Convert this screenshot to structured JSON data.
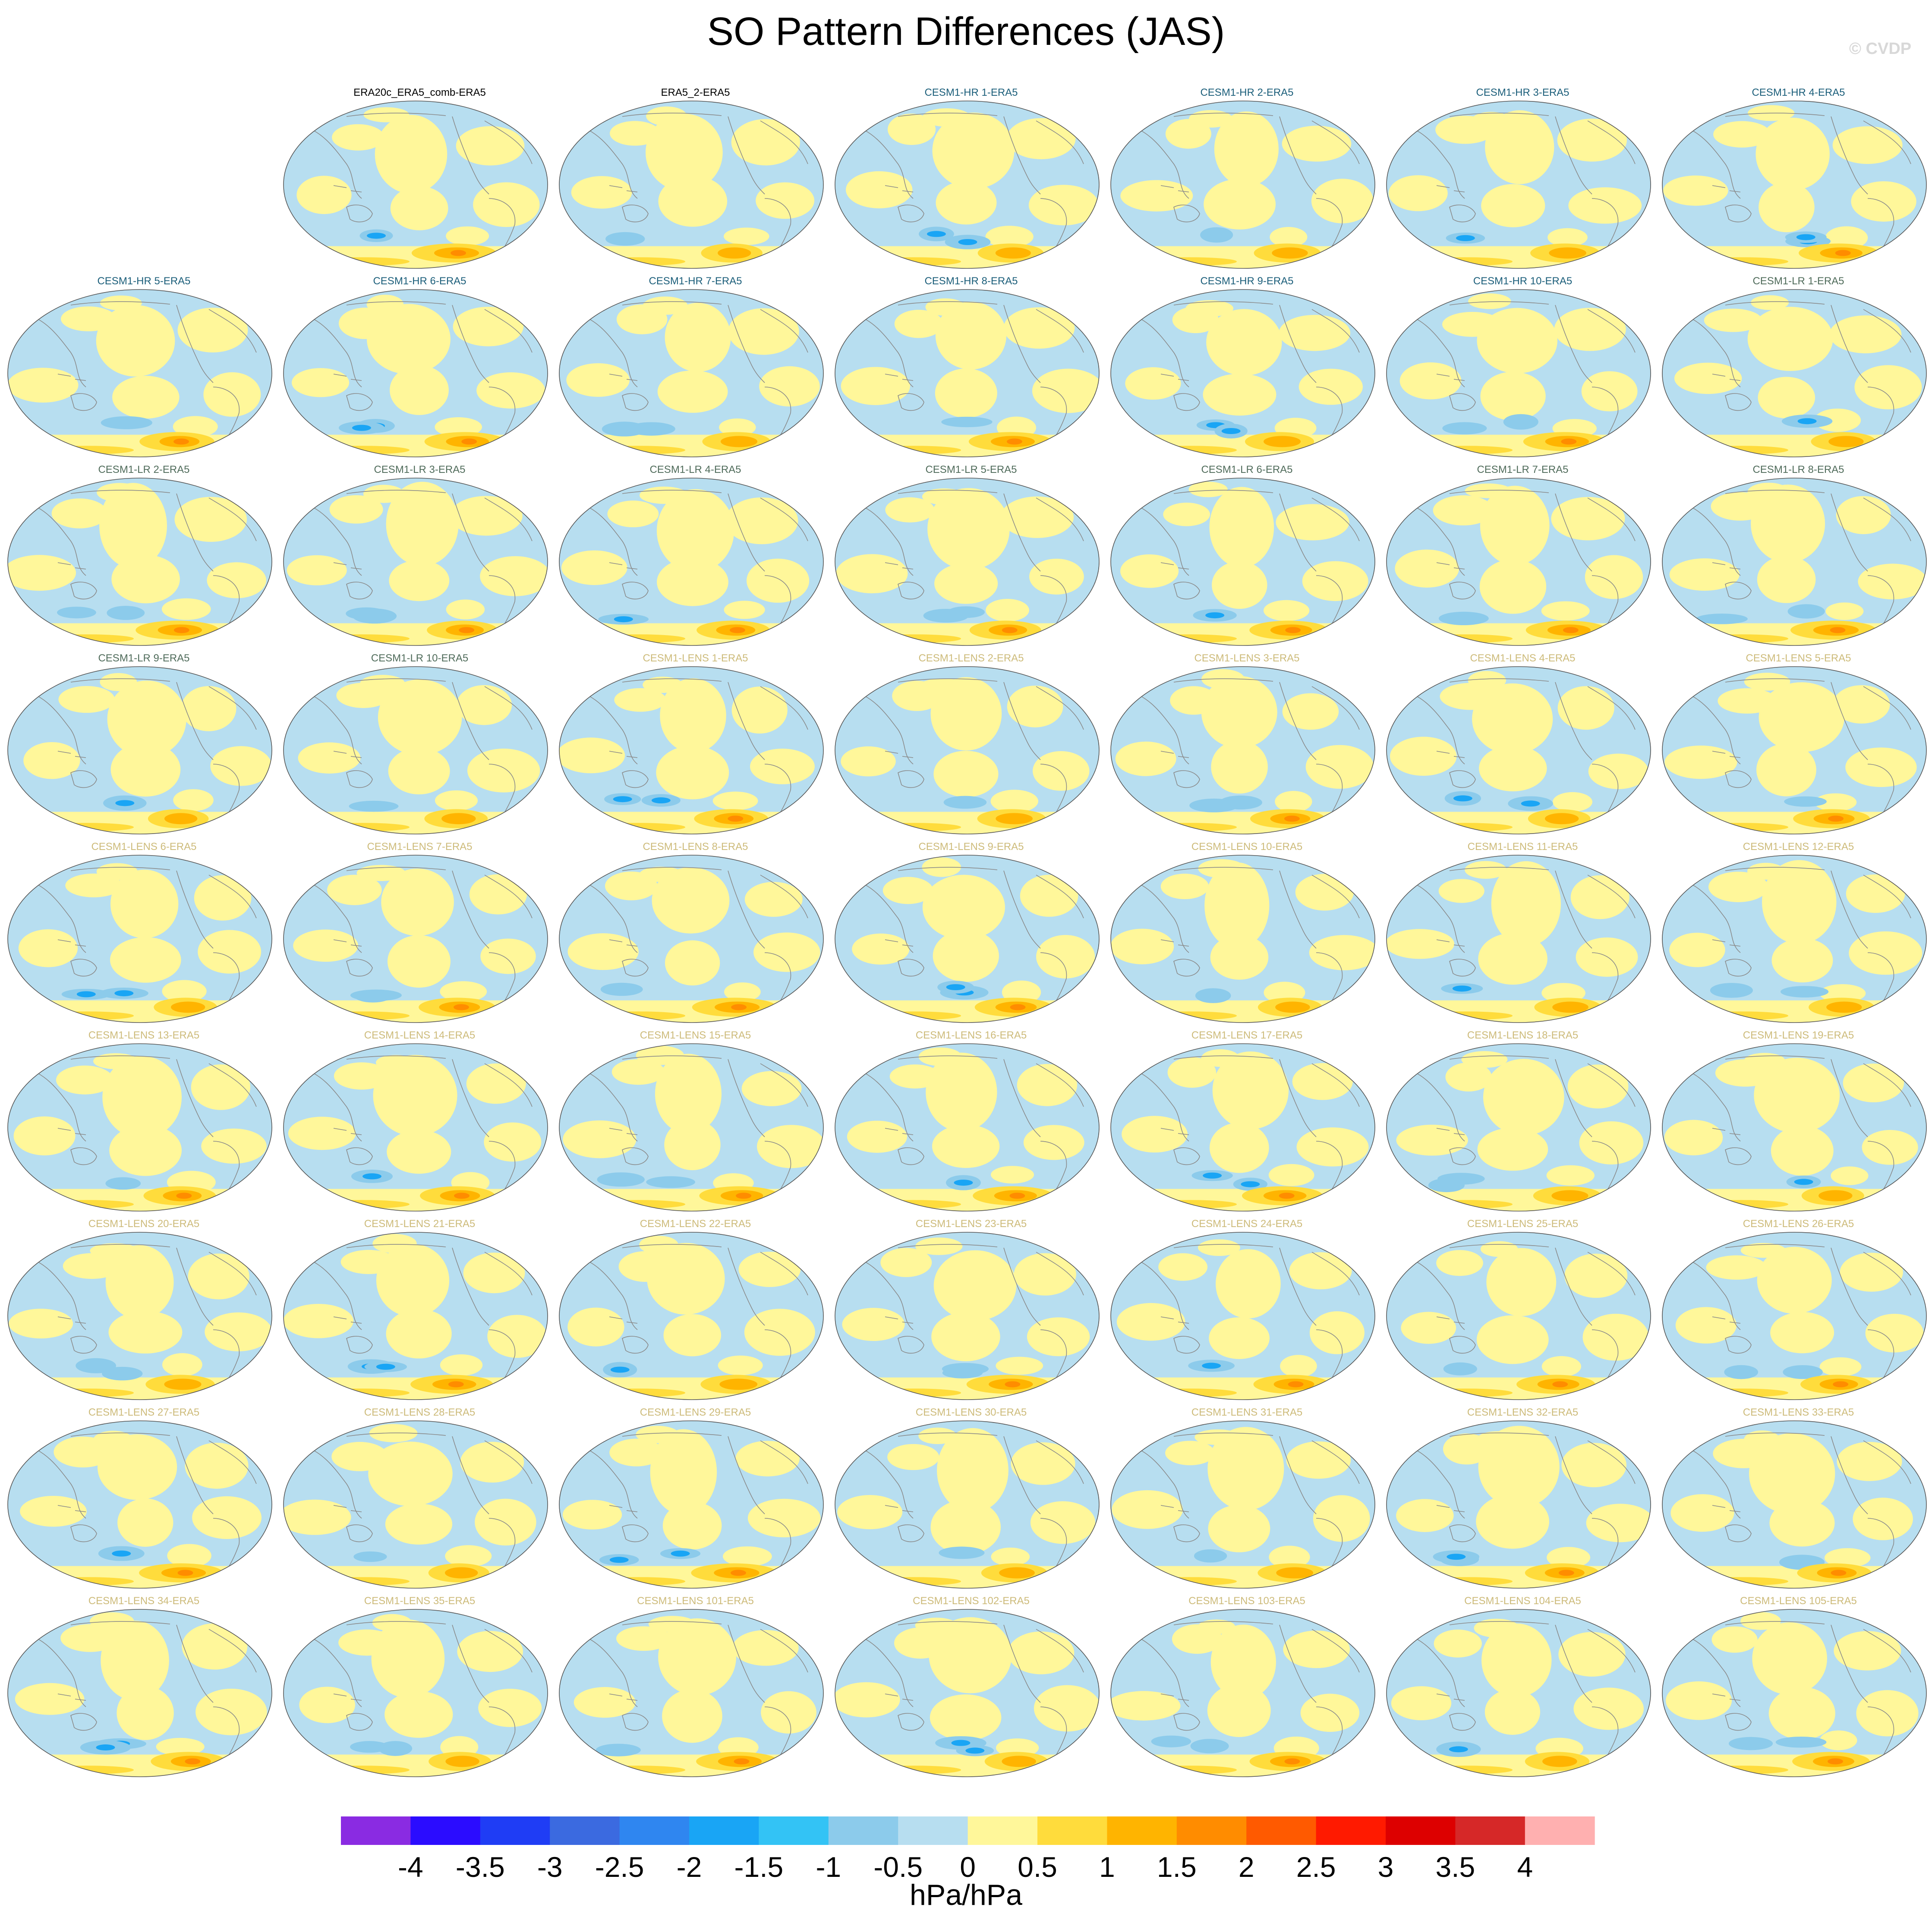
{
  "title": "SO Pattern Differences (JAS)",
  "watermark": "© CVDP",
  "colors": {
    "obs_title": "#000000",
    "hr_title": "#1b5e7a",
    "lr_title": "#4f6b5a",
    "lens_title": "#cdbb7a",
    "ocean_neg": "#b7def0",
    "ocean_pos": "#fff79a",
    "coast": "#8a8a8a"
  },
  "chart_data": {
    "type": "heatmap",
    "grid_columns": 7,
    "panels": [
      {
        "label": "ERA20c_ERA5_comb-ERA5",
        "group": "obs"
      },
      {
        "label": "ERA5_2-ERA5",
        "group": "obs"
      },
      {
        "label": "CESM1-HR 1-ERA5",
        "group": "hr"
      },
      {
        "label": "CESM1-HR 2-ERA5",
        "group": "hr"
      },
      {
        "label": "CESM1-HR 3-ERA5",
        "group": "hr"
      },
      {
        "label": "CESM1-HR 4-ERA5",
        "group": "hr"
      },
      {
        "label": "CESM1-HR 5-ERA5",
        "group": "hr"
      },
      {
        "label": "CESM1-HR 6-ERA5",
        "group": "hr"
      },
      {
        "label": "CESM1-HR 7-ERA5",
        "group": "hr"
      },
      {
        "label": "CESM1-HR 8-ERA5",
        "group": "hr"
      },
      {
        "label": "CESM1-HR 9-ERA5",
        "group": "hr"
      },
      {
        "label": "CESM1-HR 10-ERA5",
        "group": "hr"
      },
      {
        "label": "CESM1-LR 1-ERA5",
        "group": "lr"
      },
      {
        "label": "CESM1-LR 2-ERA5",
        "group": "lr"
      },
      {
        "label": "CESM1-LR 3-ERA5",
        "group": "lr"
      },
      {
        "label": "CESM1-LR 4-ERA5",
        "group": "lr"
      },
      {
        "label": "CESM1-LR 5-ERA5",
        "group": "lr"
      },
      {
        "label": "CESM1-LR 6-ERA5",
        "group": "lr"
      },
      {
        "label": "CESM1-LR 7-ERA5",
        "group": "lr"
      },
      {
        "label": "CESM1-LR 8-ERA5",
        "group": "lr"
      },
      {
        "label": "CESM1-LR 9-ERA5",
        "group": "lr"
      },
      {
        "label": "CESM1-LR 10-ERA5",
        "group": "lr"
      },
      {
        "label": "CESM1-LENS 1-ERA5",
        "group": "lens"
      },
      {
        "label": "CESM1-LENS 2-ERA5",
        "group": "lens"
      },
      {
        "label": "CESM1-LENS 3-ERA5",
        "group": "lens"
      },
      {
        "label": "CESM1-LENS 4-ERA5",
        "group": "lens"
      },
      {
        "label": "CESM1-LENS 5-ERA5",
        "group": "lens"
      },
      {
        "label": "CESM1-LENS 6-ERA5",
        "group": "lens"
      },
      {
        "label": "CESM1-LENS 7-ERA5",
        "group": "lens"
      },
      {
        "label": "CESM1-LENS 8-ERA5",
        "group": "lens"
      },
      {
        "label": "CESM1-LENS 9-ERA5",
        "group": "lens"
      },
      {
        "label": "CESM1-LENS 10-ERA5",
        "group": "lens"
      },
      {
        "label": "CESM1-LENS 11-ERA5",
        "group": "lens"
      },
      {
        "label": "CESM1-LENS 12-ERA5",
        "group": "lens"
      },
      {
        "label": "CESM1-LENS 13-ERA5",
        "group": "lens"
      },
      {
        "label": "CESM1-LENS 14-ERA5",
        "group": "lens"
      },
      {
        "label": "CESM1-LENS 15-ERA5",
        "group": "lens"
      },
      {
        "label": "CESM1-LENS 16-ERA5",
        "group": "lens"
      },
      {
        "label": "CESM1-LENS 17-ERA5",
        "group": "lens"
      },
      {
        "label": "CESM1-LENS 18-ERA5",
        "group": "lens"
      },
      {
        "label": "CESM1-LENS 19-ERA5",
        "group": "lens"
      },
      {
        "label": "CESM1-LENS 20-ERA5",
        "group": "lens"
      },
      {
        "label": "CESM1-LENS 21-ERA5",
        "group": "lens"
      },
      {
        "label": "CESM1-LENS 22-ERA5",
        "group": "lens"
      },
      {
        "label": "CESM1-LENS 23-ERA5",
        "group": "lens"
      },
      {
        "label": "CESM1-LENS 24-ERA5",
        "group": "lens"
      },
      {
        "label": "CESM1-LENS 25-ERA5",
        "group": "lens"
      },
      {
        "label": "CESM1-LENS 26-ERA5",
        "group": "lens"
      },
      {
        "label": "CESM1-LENS 27-ERA5",
        "group": "lens"
      },
      {
        "label": "CESM1-LENS 28-ERA5",
        "group": "lens"
      },
      {
        "label": "CESM1-LENS 29-ERA5",
        "group": "lens"
      },
      {
        "label": "CESM1-LENS 30-ERA5",
        "group": "lens"
      },
      {
        "label": "CESM1-LENS 31-ERA5",
        "group": "lens"
      },
      {
        "label": "CESM1-LENS 32-ERA5",
        "group": "lens"
      },
      {
        "label": "CESM1-LENS 33-ERA5",
        "group": "lens"
      },
      {
        "label": "CESM1-LENS 34-ERA5",
        "group": "lens"
      },
      {
        "label": "CESM1-LENS 35-ERA5",
        "group": "lens"
      },
      {
        "label": "CESM1-LENS 101-ERA5",
        "group": "lens"
      },
      {
        "label": "CESM1-LENS 102-ERA5",
        "group": "lens"
      },
      {
        "label": "CESM1-LENS 103-ERA5",
        "group": "lens"
      },
      {
        "label": "CESM1-LENS 104-ERA5",
        "group": "lens"
      },
      {
        "label": "CESM1-LENS 105-ERA5",
        "group": "lens"
      }
    ],
    "colorbar": {
      "units": "hPa/hPa",
      "ticks": [
        "-4",
        "-3.5",
        "-3",
        "-2.5",
        "-2",
        "-1.5",
        "-1",
        "-0.5",
        "0",
        "0.5",
        "1",
        "1.5",
        "2",
        "2.5",
        "3",
        "3.5",
        "4"
      ],
      "colors": [
        "#8a2be2",
        "#2b0cff",
        "#1f3df5",
        "#3b6ae0",
        "#2f86f0",
        "#19a5f5",
        "#33c3f5",
        "#8ccbeb",
        "#b7def0",
        "#fff79a",
        "#ffdc3c",
        "#ffb400",
        "#ff8c00",
        "#ff5a00",
        "#ff1a00",
        "#dd0000",
        "#d62828",
        "#ffb0b0"
      ]
    }
  }
}
